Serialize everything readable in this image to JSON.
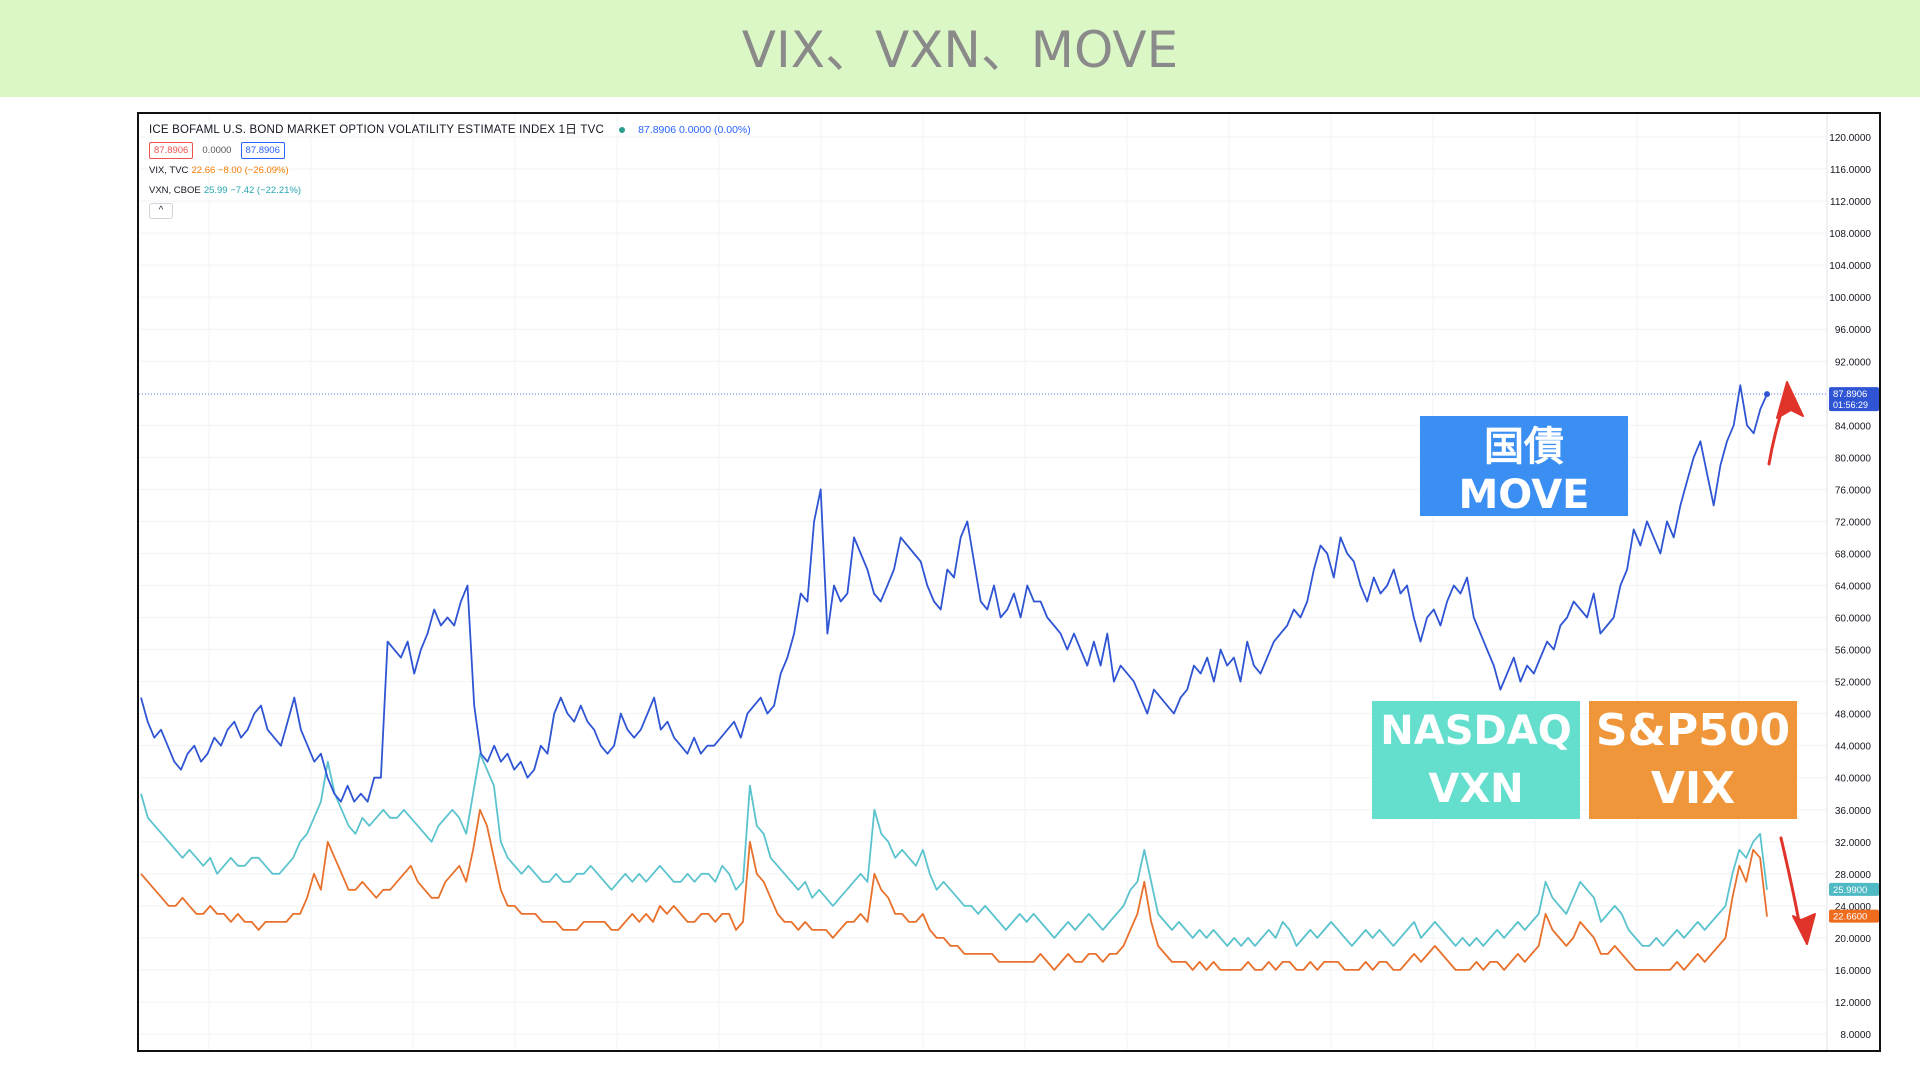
{
  "banner": {
    "title": "VIX、VXN、MOVE"
  },
  "legend": {
    "main_title": "ICE BOFAML U.S. BOND MARKET OPTION VOLATILITY ESTIMATE INDEX  1日  TVC",
    "main_value": "87.8906  0.0000 (0.00%)",
    "box_left": "87.8906",
    "box_mid": "0.0000",
    "box_right": "87.8906",
    "vix_name": "VIX, TVC",
    "vix_value": "22.66  −8.00 (−26.09%)",
    "vxn_name": "VXN, CBOE",
    "vxn_value": "25.99  −7.42 (−22.21%)",
    "collapse_symbol": "^"
  },
  "annotations": {
    "move_label": "国債MOVE",
    "vxn_label_line1": "NASDAQ",
    "vxn_label_line2": "VXN",
    "vix_label_line1": "S&P500",
    "vix_label_line2": "VIX"
  },
  "price_tags": {
    "move_value": "87.8906",
    "move_time": "01:56:29",
    "vxn_value": "25.9900",
    "vix_value": "22.6600"
  },
  "colors": {
    "move": "#2f55d4",
    "vxn": "#5bc3cd",
    "vix": "#e8712d",
    "arrow": "#e0342a",
    "banner": "#dbf7c6"
  },
  "chart_data": {
    "type": "line",
    "title": "ICE BOFAML U.S. BOND MARKET OPTION VOLATILITY ESTIMATE INDEX",
    "xlabel": "",
    "ylabel": "",
    "ylim": [
      4,
      122
    ],
    "y_ticks": [
      "120.0000",
      "116.0000",
      "112.0000",
      "108.0000",
      "104.0000",
      "100.0000",
      "96.0000",
      "92.0000",
      "88.0000",
      "84.0000",
      "80.0000",
      "76.0000",
      "72.0000",
      "68.0000",
      "64.0000",
      "60.0000",
      "56.0000",
      "52.0000",
      "48.0000",
      "44.0000",
      "40.0000",
      "36.0000",
      "32.0000",
      "28.0000",
      "24.0000",
      "20.0000",
      "16.0000",
      "12.0000",
      "8.0000"
    ],
    "grid": true,
    "series": [
      {
        "name": "MOVE",
        "values": [
          50,
          47,
          45,
          46,
          44,
          42,
          41,
          43,
          44,
          42,
          43,
          45,
          44,
          46,
          47,
          45,
          46,
          48,
          49,
          46,
          45,
          44,
          47,
          50,
          46,
          44,
          42,
          43,
          40,
          38,
          37,
          39,
          37,
          38,
          37,
          40,
          40,
          57,
          56,
          55,
          57,
          53,
          56,
          58,
          61,
          59,
          60,
          59,
          62,
          64,
          49,
          43,
          42,
          44,
          42,
          43,
          41,
          42,
          40,
          41,
          44,
          43,
          48,
          50,
          48,
          47,
          49,
          47,
          46,
          44,
          43,
          44,
          48,
          46,
          45,
          46,
          48,
          50,
          46,
          47,
          45,
          44,
          43,
          45,
          43,
          44,
          44,
          45,
          46,
          47,
          45,
          48,
          49,
          50,
          48,
          49,
          53,
          55,
          58,
          63,
          62,
          72,
          76,
          58,
          64,
          62,
          63,
          70,
          68,
          66,
          63,
          62,
          64,
          66,
          70,
          69,
          68,
          67,
          64,
          62,
          61,
          66,
          65,
          70,
          72,
          67,
          62,
          61,
          64,
          60,
          61,
          63,
          60,
          64,
          62,
          62,
          60,
          59,
          58,
          56,
          58,
          56,
          54,
          57,
          54,
          58,
          52,
          54,
          53,
          52,
          50,
          48,
          51,
          50,
          49,
          48,
          50,
          51,
          54,
          53,
          55,
          52,
          56,
          54,
          55,
          52,
          57,
          54,
          53,
          55,
          57,
          58,
          59,
          61,
          60,
          62,
          66,
          69,
          68,
          65,
          70,
          68,
          67,
          64,
          62,
          65,
          63,
          64,
          66,
          63,
          64,
          60,
          57,
          60,
          61,
          59,
          62,
          64,
          63,
          65,
          60,
          58,
          56,
          54,
          51,
          53,
          55,
          52,
          54,
          53,
          55,
          57,
          56,
          59,
          60,
          62,
          61,
          60,
          63,
          58,
          59,
          60,
          64,
          66,
          71,
          69,
          72,
          70,
          68,
          72,
          70,
          74,
          77,
          80,
          82,
          78,
          74,
          79,
          82,
          84,
          89,
          84,
          83,
          86,
          87.89
        ]
      },
      {
        "name": "VXN",
        "values": [
          38,
          35,
          34,
          33,
          32,
          31,
          30,
          31,
          30,
          29,
          30,
          28,
          29,
          30,
          29,
          29,
          30,
          30,
          29,
          28,
          28,
          29,
          30,
          32,
          33,
          35,
          37,
          42,
          38,
          36,
          34,
          33,
          35,
          34,
          35,
          36,
          35,
          35,
          36,
          35,
          34,
          33,
          32,
          34,
          35,
          36,
          35,
          33,
          38,
          43,
          41,
          39,
          32,
          30,
          29,
          28,
          29,
          28,
          27,
          27,
          28,
          27,
          27,
          28,
          28,
          29,
          28,
          27,
          26,
          27,
          28,
          27,
          28,
          27,
          28,
          29,
          28,
          27,
          27,
          28,
          27,
          28,
          28,
          27,
          29,
          28,
          26,
          27,
          39,
          34,
          33,
          30,
          29,
          28,
          27,
          26,
          27,
          25,
          26,
          25,
          24,
          25,
          26,
          27,
          28,
          27,
          36,
          33,
          32,
          30,
          31,
          30,
          29,
          31,
          28,
          26,
          27,
          26,
          25,
          24,
          24,
          23,
          24,
          23,
          22,
          21,
          22,
          23,
          22,
          23,
          22,
          21,
          20,
          21,
          22,
          21,
          22,
          23,
          22,
          21,
          22,
          23,
          24,
          26,
          27,
          31,
          27,
          23,
          22,
          21,
          22,
          21,
          20,
          21,
          20,
          21,
          20,
          19,
          20,
          19,
          20,
          19,
          20,
          21,
          20,
          22,
          21,
          19,
          20,
          21,
          20,
          21,
          22,
          21,
          20,
          19,
          20,
          21,
          20,
          21,
          20,
          19,
          20,
          21,
          22,
          20,
          21,
          22,
          21,
          20,
          19,
          20,
          19,
          20,
          19,
          20,
          21,
          20,
          21,
          22,
          21,
          22,
          23,
          27,
          25,
          24,
          23,
          25,
          27,
          26,
          25,
          22,
          23,
          24,
          23,
          21,
          20,
          19,
          19,
          20,
          19,
          20,
          21,
          20,
          21,
          22,
          21,
          22,
          23,
          24,
          28,
          31,
          30,
          32,
          33,
          26
        ]
      },
      {
        "name": "VIX",
        "values": [
          28,
          27,
          26,
          25,
          24,
          24,
          25,
          24,
          23,
          23,
          24,
          23,
          23,
          22,
          23,
          22,
          22,
          21,
          22,
          22,
          22,
          22,
          23,
          23,
          25,
          28,
          26,
          32,
          30,
          28,
          26,
          26,
          27,
          26,
          25,
          26,
          26,
          27,
          28,
          29,
          27,
          26,
          25,
          25,
          27,
          28,
          29,
          27,
          31,
          36,
          34,
          30,
          26,
          24,
          24,
          23,
          23,
          23,
          22,
          22,
          22,
          21,
          21,
          21,
          22,
          22,
          22,
          22,
          21,
          21,
          22,
          23,
          22,
          23,
          22,
          24,
          23,
          24,
          23,
          22,
          22,
          23,
          23,
          22,
          23,
          23,
          21,
          22,
          32,
          28,
          27,
          25,
          23,
          22,
          22,
          21,
          22,
          21,
          21,
          21,
          20,
          21,
          22,
          22,
          23,
          22,
          28,
          26,
          25,
          23,
          23,
          22,
          22,
          23,
          21,
          20,
          20,
          19,
          19,
          18,
          18,
          18,
          18,
          18,
          17,
          17,
          17,
          17,
          17,
          17,
          18,
          17,
          16,
          17,
          18,
          17,
          17,
          18,
          18,
          17,
          18,
          18,
          19,
          21,
          23,
          27,
          22,
          19,
          18,
          17,
          17,
          17,
          16,
          17,
          16,
          17,
          16,
          16,
          16,
          16,
          17,
          16,
          16,
          17,
          16,
          17,
          17,
          16,
          16,
          17,
          16,
          17,
          17,
          17,
          16,
          16,
          16,
          17,
          16,
          17,
          17,
          16,
          16,
          17,
          18,
          17,
          18,
          19,
          18,
          17,
          16,
          16,
          16,
          17,
          16,
          17,
          17,
          16,
          17,
          18,
          17,
          18,
          19,
          23,
          21,
          20,
          19,
          20,
          22,
          21,
          20,
          18,
          18,
          19,
          18,
          17,
          16,
          16,
          16,
          16,
          16,
          16,
          17,
          16,
          17,
          18,
          17,
          18,
          19,
          20,
          25,
          29,
          27,
          31,
          30,
          22.66
        ]
      }
    ]
  }
}
